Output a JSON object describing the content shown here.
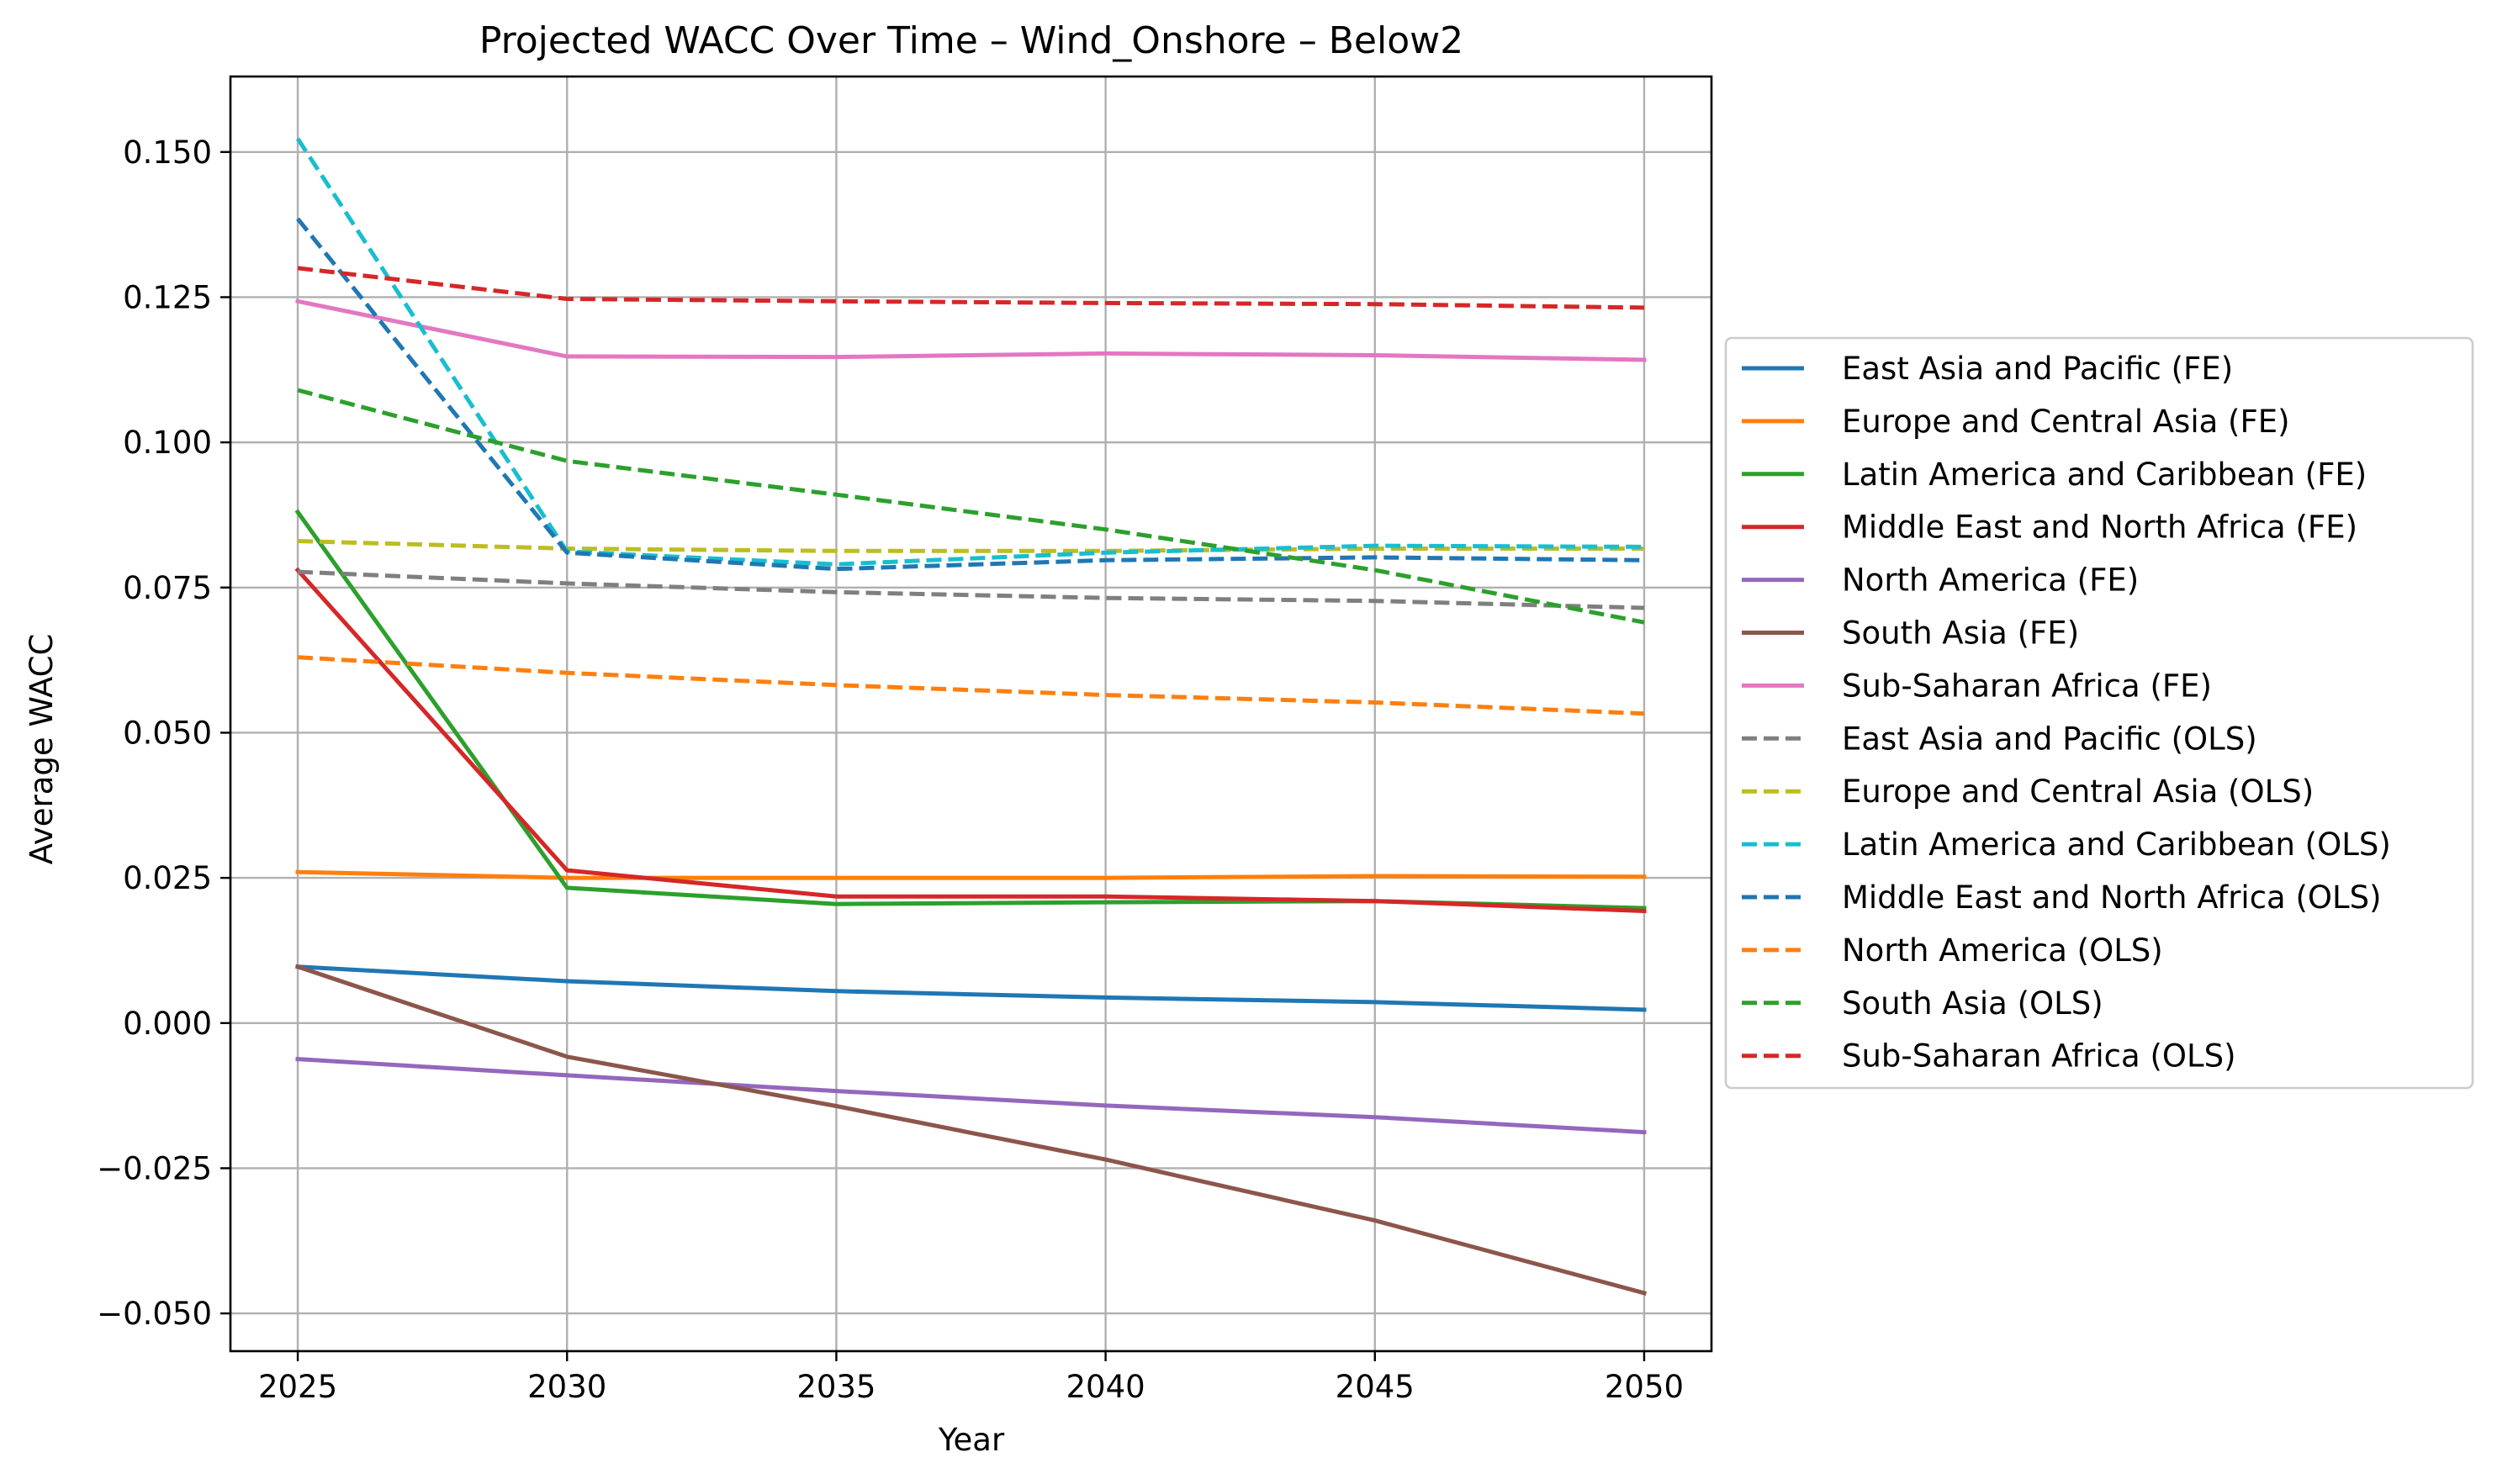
{
  "chart_data": {
    "type": "line",
    "title": "Projected WACC Over Time – Wind_Onshore – Below2",
    "xlabel": "Year",
    "ylabel": "Average WACC",
    "x": [
      2025,
      2030,
      2035,
      2040,
      2045,
      2050
    ],
    "xlim": [
      2023.75,
      2051.25
    ],
    "ylim": [
      -0.0565,
      0.163
    ],
    "yticks": [
      -0.05,
      -0.025,
      0.0,
      0.025,
      0.05,
      0.075,
      0.1,
      0.125,
      0.15
    ],
    "ytick_labels": [
      "−0.050",
      "−0.025",
      "0.000",
      "0.025",
      "0.050",
      "0.075",
      "0.100",
      "0.125",
      "0.150"
    ],
    "xtick_labels": [
      "2025",
      "2030",
      "2035",
      "2040",
      "2045",
      "2050"
    ],
    "grid": true,
    "legend_position": "center-right outside plot",
    "series": [
      {
        "name": "East Asia and Pacific (FE)",
        "color": "#1f77b4",
        "style": "solid",
        "values": [
          0.0097,
          0.0072,
          0.0055,
          0.0044,
          0.0036,
          0.0023
        ]
      },
      {
        "name": "Europe and Central Asia (FE)",
        "color": "#ff7f0e",
        "style": "solid",
        "values": [
          0.026,
          0.025,
          0.025,
          0.025,
          0.0253,
          0.0252
        ]
      },
      {
        "name": "Latin America and Caribbean (FE)",
        "color": "#2ca02c",
        "style": "solid",
        "values": [
          0.088,
          0.0233,
          0.0205,
          0.0208,
          0.021,
          0.0198
        ]
      },
      {
        "name": "Middle East and North Africa (FE)",
        "color": "#d62728",
        "style": "solid",
        "values": [
          0.078,
          0.0263,
          0.0218,
          0.0218,
          0.021,
          0.0193
        ]
      },
      {
        "name": "North America (FE)",
        "color": "#9467bd",
        "style": "solid",
        "values": [
          -0.0062,
          -0.009,
          -0.0117,
          -0.0142,
          -0.0162,
          -0.0188
        ]
      },
      {
        "name": "South Asia (FE)",
        "color": "#8c564b",
        "style": "solid",
        "values": [
          0.0097,
          -0.0058,
          -0.0143,
          -0.0235,
          -0.034,
          -0.0465
        ]
      },
      {
        "name": "Sub-Saharan Africa (FE)",
        "color": "#e377c2",
        "style": "solid",
        "values": [
          0.1243,
          0.1148,
          0.1147,
          0.1153,
          0.115,
          0.1142
        ]
      },
      {
        "name": "East Asia and Pacific (OLS)",
        "color": "#7f7f7f",
        "style": "dashed",
        "values": [
          0.0777,
          0.0757,
          0.0742,
          0.0732,
          0.0727,
          0.0715
        ]
      },
      {
        "name": "Europe and Central Asia (OLS)",
        "color": "#bcbd22",
        "style": "dashed",
        "values": [
          0.083,
          0.0817,
          0.0813,
          0.0813,
          0.0817,
          0.0817
        ]
      },
      {
        "name": "Latin America and Caribbean (OLS)",
        "color": "#17becf",
        "style": "dashed",
        "values": [
          0.1523,
          0.0812,
          0.079,
          0.081,
          0.0822,
          0.082
        ]
      },
      {
        "name": "Middle East and North Africa (OLS)",
        "color": "#1f77b4",
        "style": "dashed",
        "values": [
          0.1385,
          0.081,
          0.0782,
          0.0797,
          0.0802,
          0.0797
        ]
      },
      {
        "name": "North America (OLS)",
        "color": "#ff7f0e",
        "style": "dashed",
        "values": [
          0.063,
          0.0603,
          0.0582,
          0.0565,
          0.0552,
          0.0533
        ]
      },
      {
        "name": "South Asia (OLS)",
        "color": "#2ca02c",
        "style": "dashed",
        "values": [
          0.109,
          0.0968,
          0.091,
          0.085,
          0.078,
          0.069
        ]
      },
      {
        "name": "Sub-Saharan Africa (OLS)",
        "color": "#d62728",
        "style": "dashed",
        "values": [
          0.13,
          0.1247,
          0.1243,
          0.124,
          0.1238,
          0.1232
        ]
      }
    ]
  }
}
